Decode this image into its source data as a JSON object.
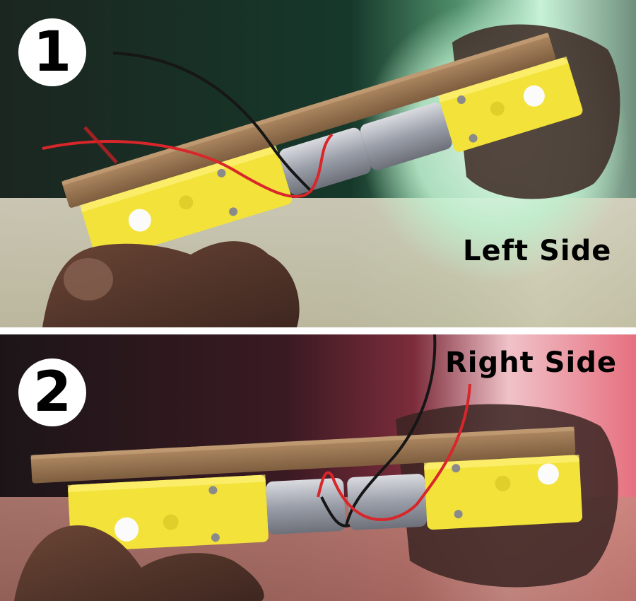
{
  "panels": [
    {
      "step": "1",
      "label": "Left Side"
    },
    {
      "step": "2",
      "label": "Right Side"
    }
  ],
  "colors": {
    "motor_yellow": "#f2e23a",
    "wood": "#9c7a56",
    "wire_red": "#d8262a",
    "wire_black": "#161616",
    "badge_bg": "#ffffff",
    "label_text": "#000000"
  }
}
